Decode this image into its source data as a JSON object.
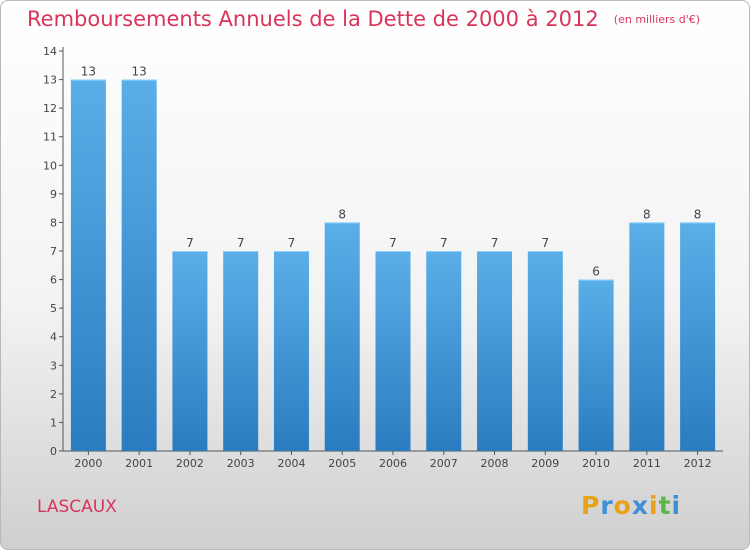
{
  "header": {
    "title": "Remboursements Annuels de la Dette de 2000 à 2012",
    "unit": "(en milliers d'€)"
  },
  "footer": {
    "commune": "LASCAUX",
    "logo": {
      "letters": [
        "P",
        "r",
        "o",
        "x",
        "i",
        "t",
        "i"
      ],
      "colors": [
        "#e8a21a",
        "#3d8fd6",
        "#e8a21a",
        "#3d8fd6",
        "#e8a21a",
        "#5cb64a",
        "#3d8fd6"
      ]
    }
  },
  "colors": {
    "bar_dark": "#2a7cc0",
    "bar_light": "#5aafe8",
    "title": "#d9345a"
  },
  "chart_data": {
    "type": "bar",
    "title": "Remboursements Annuels de la Dette de 2000 à 2012",
    "subtitle": "(en milliers d'€)",
    "categories": [
      "2000",
      "2001",
      "2002",
      "2003",
      "2004",
      "2005",
      "2006",
      "2007",
      "2008",
      "2009",
      "2010",
      "2011",
      "2012"
    ],
    "values": [
      13,
      13,
      7,
      7,
      7,
      8,
      7,
      7,
      7,
      7,
      6,
      8,
      8
    ],
    "ylim": [
      0,
      14
    ],
    "yticks": [
      0,
      1,
      2,
      3,
      4,
      5,
      6,
      7,
      8,
      9,
      10,
      11,
      12,
      13,
      14
    ],
    "grid": false,
    "legend": "none"
  }
}
